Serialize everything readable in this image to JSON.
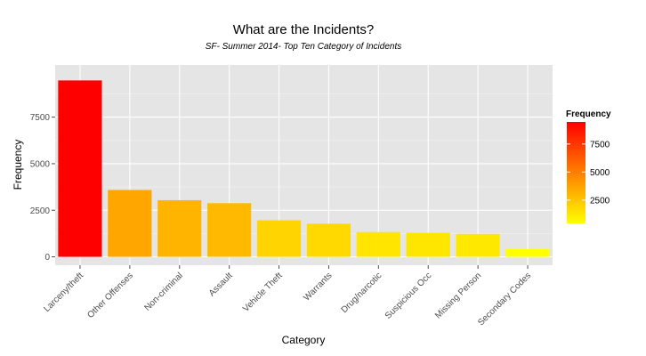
{
  "chart_data": {
    "type": "bar",
    "title": "What are the Incidents?",
    "subtitle": "SF- Summer 2014- Top Ten Category of Incidents",
    "xlabel": "Category",
    "ylabel": "Frequency",
    "categories": [
      "Larceny/theft",
      "Other Offenses",
      "Non-criminal",
      "Assault",
      "Vehicle Theft",
      "Warrants",
      "Drug/narcotic",
      "Suspicious Occ",
      "Missing Person",
      "Secondary Codes"
    ],
    "values": [
      9470,
      3590,
      3040,
      2880,
      1960,
      1780,
      1330,
      1290,
      1230,
      420
    ],
    "yticks": [
      0,
      2500,
      5000,
      7500
    ],
    "ylim": [
      -450,
      10300
    ],
    "grid": true,
    "legend": {
      "title": "Frequency",
      "ticks": [
        2500,
        5000,
        7500
      ],
      "range": [
        420,
        9470
      ],
      "low_color": "#ffff00",
      "high_color": "#ff0000",
      "placement": "right"
    },
    "panel_background": "#e5e5e5"
  }
}
